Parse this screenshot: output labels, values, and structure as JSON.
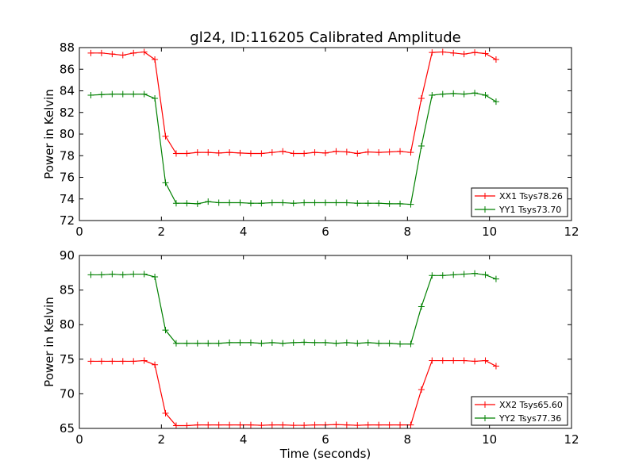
{
  "chart_data": [
    {
      "type": "line",
      "title": "gl24, ID:116205 Calibrated Amplitude",
      "xlabel": "",
      "ylabel": "Power in Kelvin",
      "xlim": [
        0,
        12
      ],
      "ylim": [
        72,
        88
      ],
      "xticks": [
        0,
        2,
        4,
        6,
        8,
        10,
        12
      ],
      "yticks": [
        72,
        74,
        76,
        78,
        80,
        82,
        84,
        86,
        88
      ],
      "legend_position": "lower right",
      "x": [
        0.28,
        0.54,
        0.8,
        1.06,
        1.32,
        1.58,
        1.84,
        2.1,
        2.36,
        2.62,
        2.88,
        3.14,
        3.4,
        3.66,
        3.92,
        4.18,
        4.44,
        4.7,
        4.96,
        5.22,
        5.48,
        5.74,
        6.0,
        6.26,
        6.52,
        6.78,
        7.04,
        7.3,
        7.56,
        7.82,
        8.08,
        8.34,
        8.6,
        8.86,
        9.12,
        9.38,
        9.64,
        9.9,
        10.16
      ],
      "series": [
        {
          "name": "XX1 Tsys78.26",
          "color": "#ff0000",
          "values": [
            87.5,
            87.5,
            87.4,
            87.3,
            87.5,
            87.6,
            86.9,
            79.8,
            78.2,
            78.2,
            78.3,
            78.3,
            78.25,
            78.3,
            78.25,
            78.2,
            78.2,
            78.3,
            78.4,
            78.2,
            78.2,
            78.3,
            78.25,
            78.4,
            78.35,
            78.2,
            78.35,
            78.3,
            78.35,
            78.4,
            78.3,
            83.3,
            87.55,
            87.6,
            87.5,
            87.4,
            87.55,
            87.45,
            86.9
          ]
        },
        {
          "name": "YY1 Tsys73.70",
          "color": "#008000",
          "values": [
            83.6,
            83.65,
            83.7,
            83.7,
            83.7,
            83.7,
            83.3,
            75.5,
            73.6,
            73.6,
            73.55,
            73.75,
            73.65,
            73.65,
            73.65,
            73.6,
            73.6,
            73.65,
            73.65,
            73.6,
            73.65,
            73.65,
            73.65,
            73.65,
            73.65,
            73.6,
            73.6,
            73.6,
            73.55,
            73.55,
            73.5,
            78.9,
            83.6,
            83.7,
            83.75,
            83.7,
            83.8,
            83.6,
            83.0
          ]
        }
      ]
    },
    {
      "type": "line",
      "title": "",
      "xlabel": "Time (seconds)",
      "ylabel": "Power in Kelvin",
      "xlim": [
        0,
        12
      ],
      "ylim": [
        65,
        90
      ],
      "xticks": [
        0,
        2,
        4,
        6,
        8,
        10,
        12
      ],
      "yticks": [
        65,
        70,
        75,
        80,
        85,
        90
      ],
      "legend_position": "lower right",
      "x": [
        0.28,
        0.54,
        0.8,
        1.06,
        1.32,
        1.58,
        1.84,
        2.1,
        2.36,
        2.62,
        2.88,
        3.14,
        3.4,
        3.66,
        3.92,
        4.18,
        4.44,
        4.7,
        4.96,
        5.22,
        5.48,
        5.74,
        6.0,
        6.26,
        6.52,
        6.78,
        7.04,
        7.3,
        7.56,
        7.82,
        8.08,
        8.34,
        8.6,
        8.86,
        9.12,
        9.38,
        9.64,
        9.9,
        10.16
      ],
      "series": [
        {
          "name": "XX2 Tsys65.60",
          "color": "#ff0000",
          "values": [
            74.7,
            74.7,
            74.7,
            74.7,
            74.7,
            74.8,
            74.2,
            67.2,
            65.4,
            65.4,
            65.5,
            65.5,
            65.5,
            65.5,
            65.5,
            65.5,
            65.45,
            65.5,
            65.5,
            65.45,
            65.45,
            65.5,
            65.5,
            65.55,
            65.5,
            65.45,
            65.5,
            65.5,
            65.5,
            65.5,
            65.5,
            70.6,
            74.8,
            74.8,
            74.8,
            74.8,
            74.7,
            74.8,
            74.0
          ]
        },
        {
          "name": "YY2 Tsys77.36",
          "color": "#008000",
          "values": [
            87.2,
            87.2,
            87.3,
            87.2,
            87.3,
            87.3,
            86.9,
            79.2,
            77.3,
            77.3,
            77.3,
            77.3,
            77.3,
            77.4,
            77.4,
            77.4,
            77.3,
            77.4,
            77.3,
            77.4,
            77.45,
            77.4,
            77.4,
            77.3,
            77.4,
            77.3,
            77.4,
            77.3,
            77.3,
            77.2,
            77.2,
            82.6,
            87.1,
            87.1,
            87.2,
            87.3,
            87.4,
            87.2,
            86.6
          ]
        }
      ]
    }
  ]
}
